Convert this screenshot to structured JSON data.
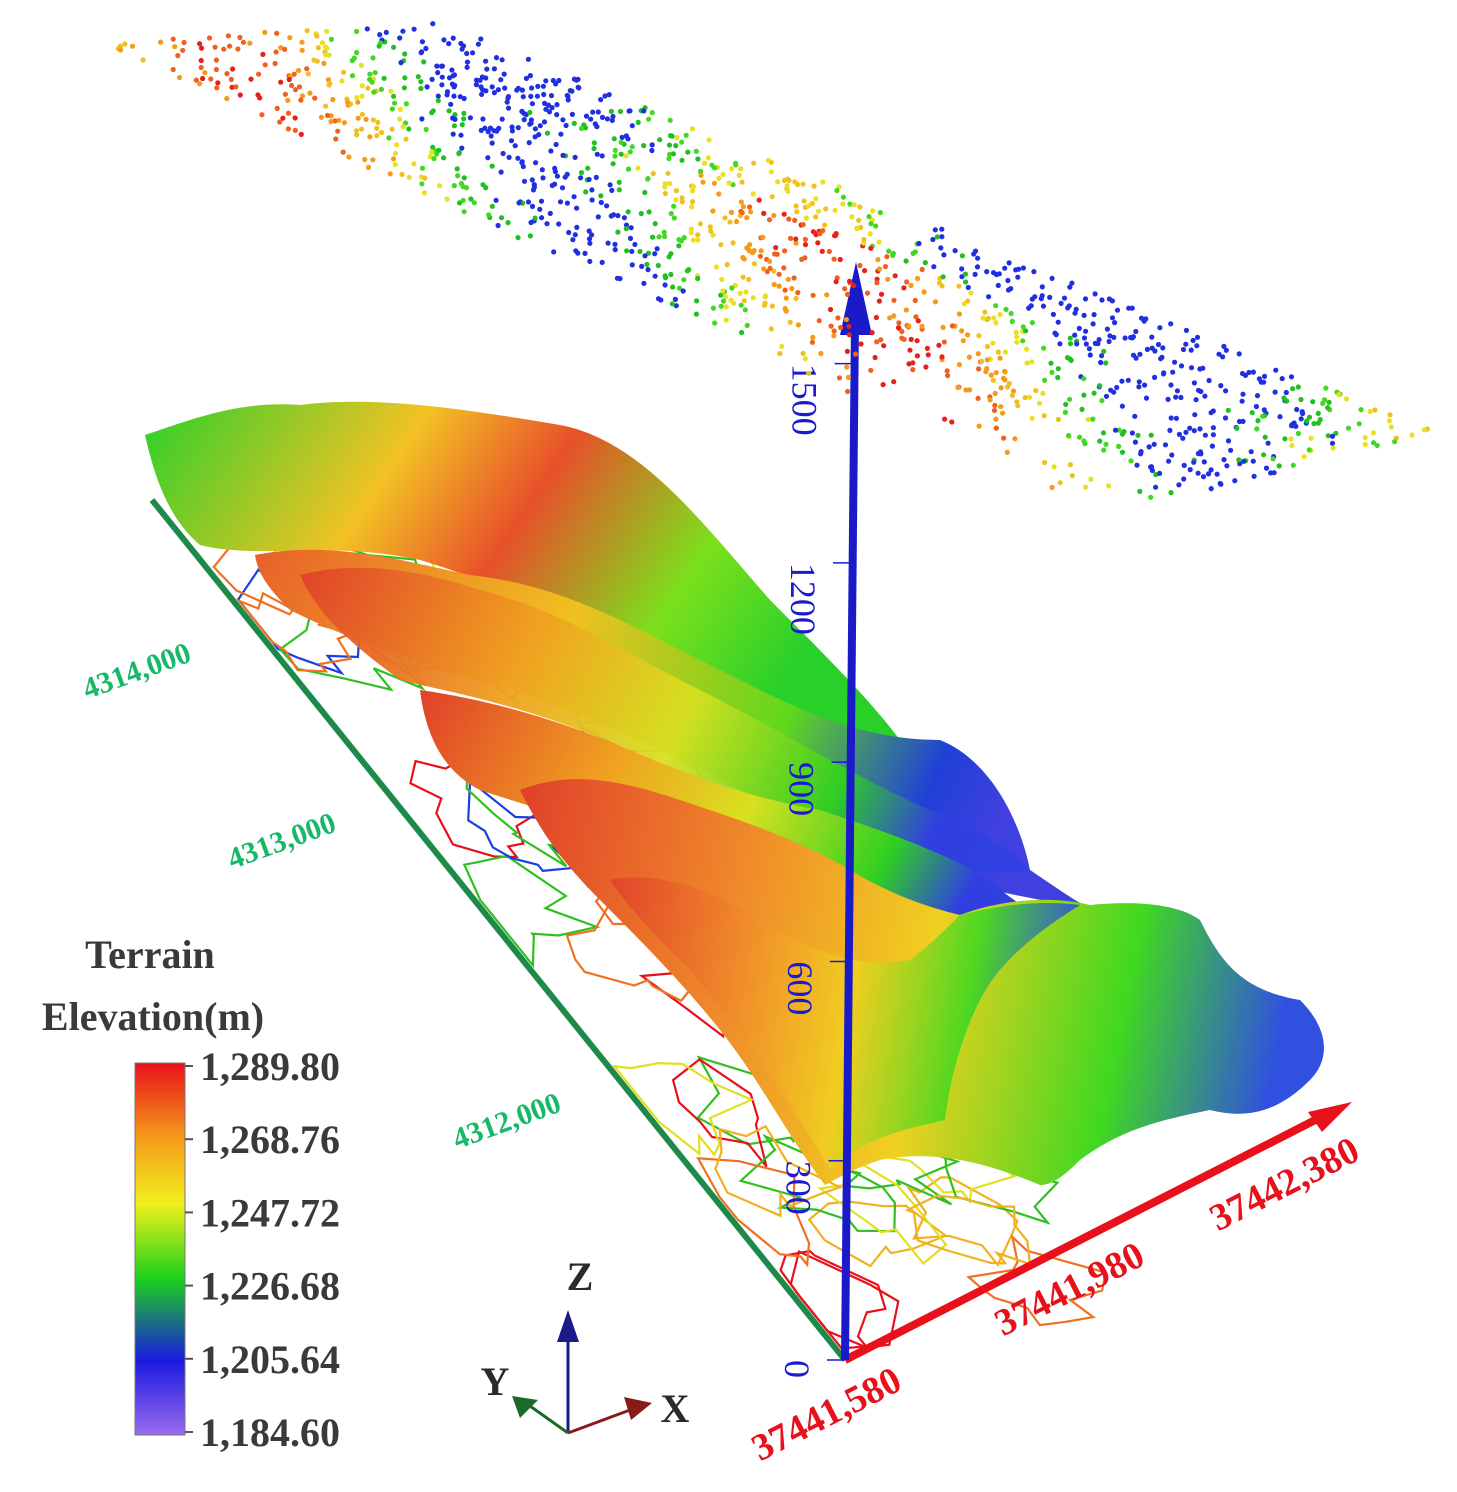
{
  "chart_data": {
    "type": "scatter",
    "legend": {
      "title_line1": "Terrain",
      "title_line2": "Elevation(m)",
      "placement": "bottom-left",
      "ticks": [
        "1,289.80",
        "1,268.76",
        "1,247.72",
        "1,226.68",
        "1,205.64",
        "1,184.60"
      ],
      "range": [
        1184.6,
        1289.8
      ]
    },
    "axes": {
      "x": {
        "ticks": [
          "37441,580",
          "37441,980",
          "37442,380"
        ],
        "color": "#e8101a"
      },
      "y": {
        "ticks": [
          "4312,000",
          "4313,000",
          "4314,000"
        ],
        "color": "#18b86a"
      },
      "z": {
        "ticks": [
          "0",
          "300",
          "600",
          "900",
          "1200",
          "1500"
        ],
        "color": "#1a1ad0"
      }
    },
    "orientation_triad": {
      "z": "Z",
      "y": "Y",
      "x": "X"
    },
    "colors": {
      "ramp": [
        "#9b6cf0",
        "#1a1ae0",
        "#1cd01c",
        "#f0f01c",
        "#f59a1a",
        "#e8101a"
      ]
    }
  }
}
